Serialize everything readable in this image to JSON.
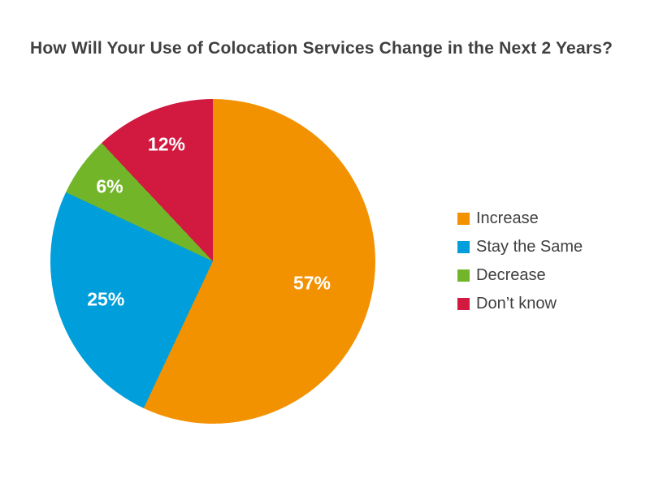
{
  "title": "How Will Your Use of Colocation Services Change in the Next 2 Years?",
  "chart_data": {
    "type": "pie",
    "title": "How Will Your Use of Colocation Services Change in the Next 2 Years?",
    "start_angle_deg": 0,
    "direction": "clockwise",
    "legend_position": "right",
    "slices": [
      {
        "name": "Increase",
        "value": 57,
        "label": "57%",
        "color": "#F39200"
      },
      {
        "name": "Stay the Same",
        "value": 25,
        "label": "25%",
        "color": "#009FDB"
      },
      {
        "name": "Decrease",
        "value": 6,
        "label": "6%",
        "color": "#72B529"
      },
      {
        "name": "Don’t know",
        "value": 12,
        "label": "12%",
        "color": "#D2193F"
      }
    ]
  },
  "legend": {
    "items": [
      {
        "label": "Increase",
        "color": "#F39200"
      },
      {
        "label": "Stay the Same",
        "color": "#009FDB"
      },
      {
        "label": "Decrease",
        "color": "#72B529"
      },
      {
        "label": "Don’t know",
        "color": "#D2193F"
      }
    ]
  },
  "colors": {
    "title_text": "#404040",
    "legend_text": "#404040",
    "slice_label_text": "#FFFFFF",
    "background": "#FFFFFF"
  }
}
